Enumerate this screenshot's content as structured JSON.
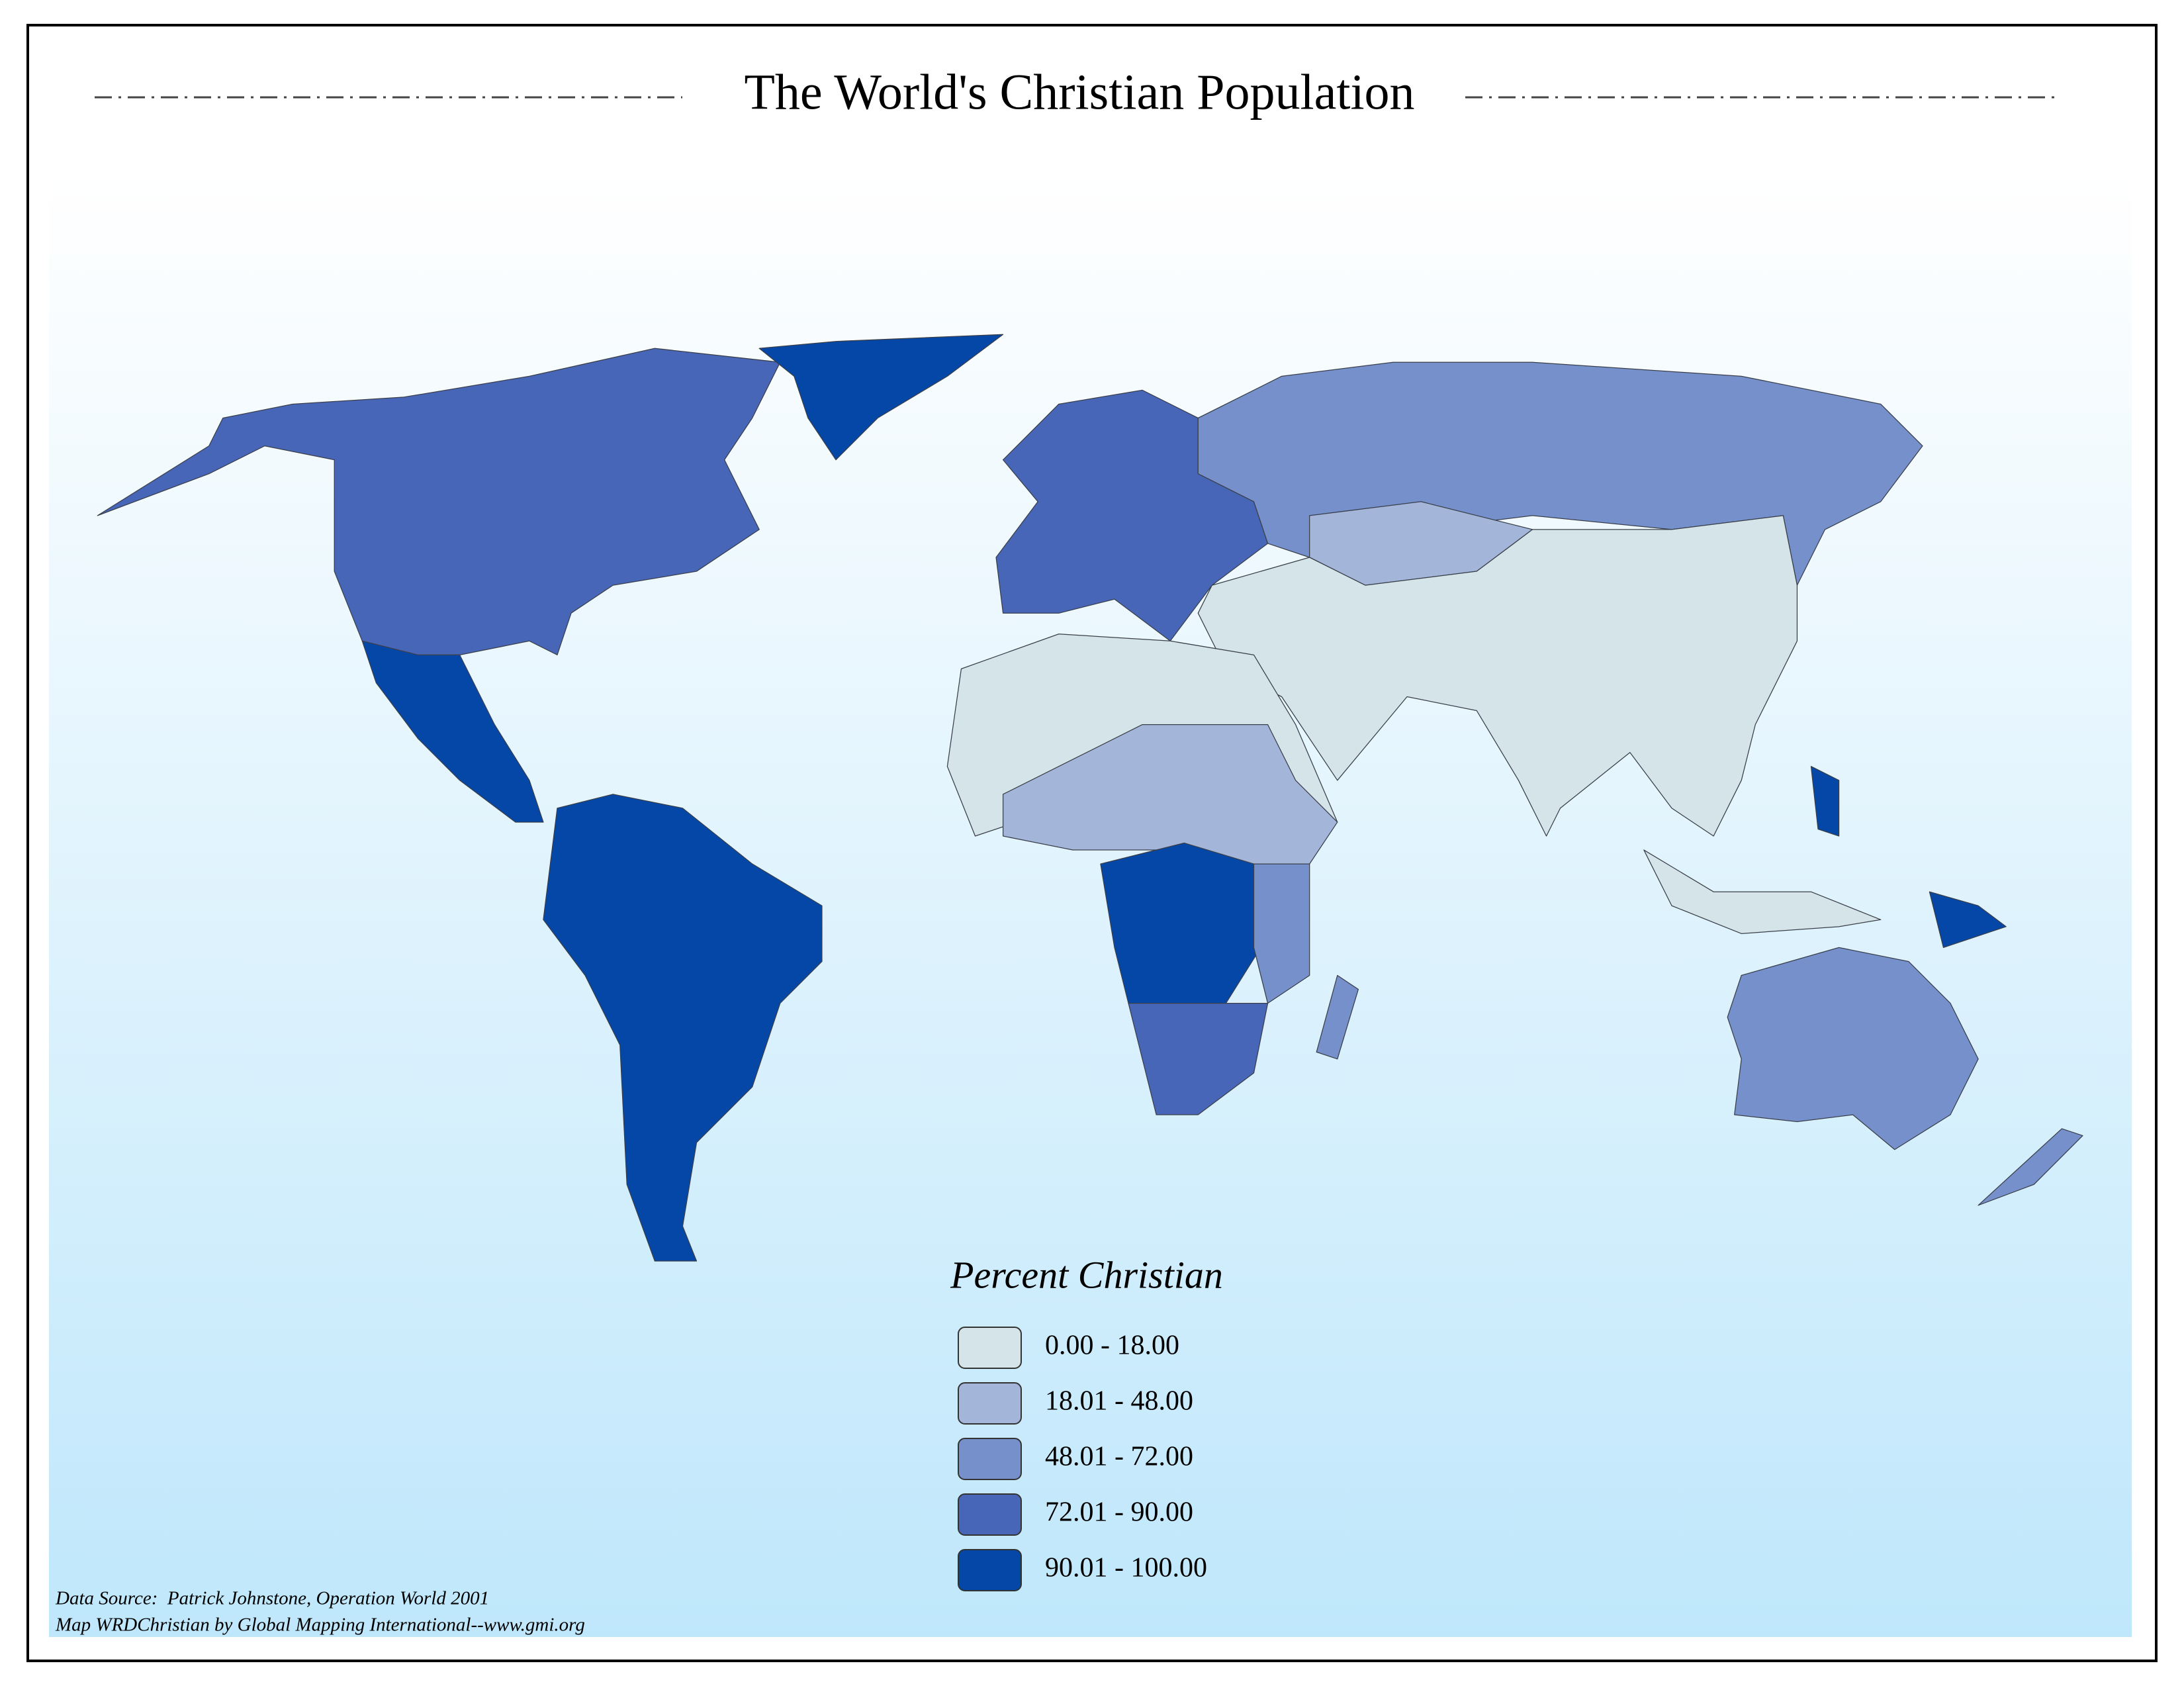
{
  "title": "The World's Christian Population",
  "legend": {
    "title": "Percent Christian",
    "items": [
      {
        "label": "0.00 - 18.00",
        "color": "#d4e4e8"
      },
      {
        "label": "18.01 - 48.00",
        "color": "#a3b6da"
      },
      {
        "label": "48.01 - 72.00",
        "color": "#7590cb"
      },
      {
        "label": "72.01 - 90.00",
        "color": "#4866b8"
      },
      {
        "label": "90.01 - 100.00",
        "color": "#0447a6"
      }
    ]
  },
  "source": [
    "Data Source:  Patrick Johnstone, Operation World 2001",
    "Map WRDChristian by Global Mapping International--www.gmi.org"
  ]
}
